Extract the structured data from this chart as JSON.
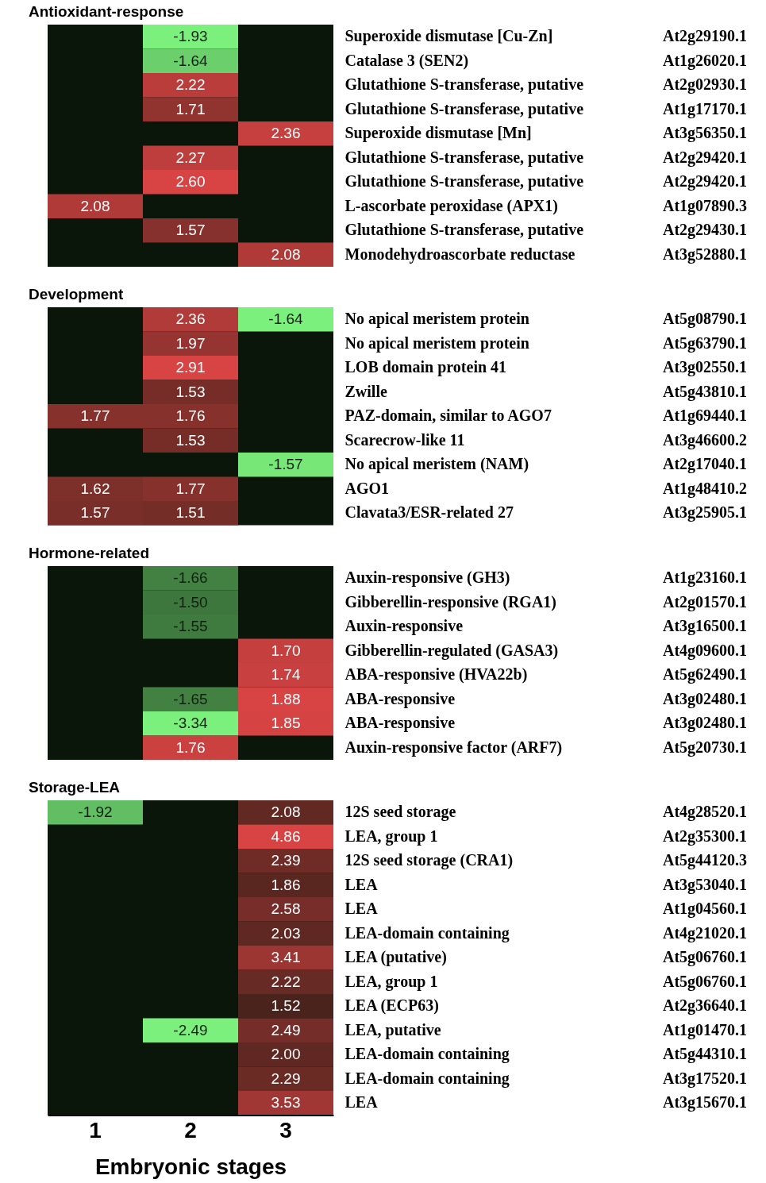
{
  "chart_data": [
    {
      "type": "heatmap",
      "title": "Antioxidant-response",
      "categories": [
        "1",
        "2",
        "3"
      ],
      "tick_labels": "y",
      "y_categories": [
        "Superoxide dismutase [Cu-Zn]",
        "Catalase 3 (SEN2)",
        "Glutathione S-transferase, putative",
        "Glutathione S-transferase, putative",
        "Superoxide dismutase [Mn]",
        "Glutathione S-transferase, putative",
        "Glutathione S-transferase, putative",
        "L-ascorbate peroxidase (APX1)",
        "Glutathione S-transferase, putative",
        "Monodehydroascorbate reductase"
      ],
      "y2_categories": [
        "At2g29190.1",
        "At1g26020.1",
        "At2g02930.1",
        "At1g17170.1",
        "At3g56350.1",
        "At2g29420.1",
        "At2g29420.1",
        "At1g07890.3",
        "At2g29430.1",
        "At3g52880.1"
      ],
      "cells": [
        [
          null,
          -1.93,
          null
        ],
        [
          null,
          -1.64,
          null
        ],
        [
          null,
          2.22,
          null
        ],
        [
          null,
          1.71,
          null
        ],
        [
          null,
          null,
          2.36
        ],
        [
          null,
          2.27,
          null
        ],
        [
          null,
          2.6,
          null
        ],
        [
          2.08,
          null,
          null
        ],
        [
          null,
          1.57,
          null
        ],
        [
          null,
          null,
          2.08
        ]
      ],
      "cell_labels": [
        [
          null,
          "-1.93",
          null
        ],
        [
          null,
          "-1.64",
          null
        ],
        [
          null,
          "2.22",
          null
        ],
        [
          null,
          "1.71",
          null
        ],
        [
          null,
          null,
          "2.36"
        ],
        [
          null,
          "2.27",
          null
        ],
        [
          null,
          "2.60",
          null
        ],
        [
          "2.08",
          null,
          null
        ],
        [
          null,
          "1.57",
          null
        ],
        [
          null,
          null,
          "2.08"
        ]
      ]
    },
    {
      "type": "heatmap",
      "title": "Development",
      "categories": [
        "1",
        "2",
        "3"
      ],
      "tick_labels": "y",
      "y_categories": [
        "No apical meristem protein",
        "No apical meristem protein",
        "LOB domain protein 41",
        "Zwille",
        "PAZ-domain, similar to AGO7",
        "Scarecrow-like 11",
        "No apical meristem (NAM)",
        "AGO1",
        "Clavata3/ESR-related 27"
      ],
      "y2_categories": [
        "At5g08790.1",
        "At5g63790.1",
        "At3g02550.1",
        "At5g43810.1",
        "At1g69440.1",
        "At3g46600.2",
        "At2g17040.1",
        "At1g48410.2",
        "At3g25905.1"
      ],
      "cells": [
        [
          null,
          2.36,
          -1.64
        ],
        [
          null,
          1.97,
          null
        ],
        [
          null,
          2.91,
          null
        ],
        [
          null,
          1.53,
          null
        ],
        [
          1.77,
          1.76,
          null
        ],
        [
          null,
          1.53,
          null
        ],
        [
          null,
          null,
          -1.57
        ],
        [
          1.62,
          1.77,
          null
        ],
        [
          1.57,
          1.51,
          null
        ]
      ],
      "cell_labels": [
        [
          null,
          "2.36",
          "-1.64"
        ],
        [
          null,
          "1.97",
          null
        ],
        [
          null,
          "2.91",
          null
        ],
        [
          null,
          "1.53",
          null
        ],
        [
          "1.77",
          "1.76",
          null
        ],
        [
          null,
          "1.53",
          null
        ],
        [
          null,
          null,
          "-1.57"
        ],
        [
          "1.62",
          "1.77",
          null
        ],
        [
          "1.57",
          "1.51",
          null
        ]
      ]
    },
    {
      "type": "heatmap",
      "title": "Hormone-related",
      "categories": [
        "1",
        "2",
        "3"
      ],
      "tick_labels": "y",
      "y_categories": [
        "Auxin-responsive (GH3)",
        "Gibberellin-responsive (RGA1)",
        "Auxin-responsive",
        "Gibberellin-regulated (GASA3)",
        "ABA-responsive (HVA22b)",
        "ABA-responsive",
        "ABA-responsive",
        "Auxin-responsive factor (ARF7)"
      ],
      "y2_categories": [
        "At1g23160.1",
        "At2g01570.1",
        "At3g16500.1",
        "At4g09600.1",
        "At5g62490.1",
        "At3g02480.1",
        "At3g02480.1",
        "At5g20730.1"
      ],
      "cells": [
        [
          null,
          -1.66,
          null
        ],
        [
          null,
          -1.5,
          null
        ],
        [
          null,
          -1.55,
          null
        ],
        [
          null,
          null,
          1.7
        ],
        [
          null,
          null,
          1.74
        ],
        [
          null,
          -1.65,
          1.88
        ],
        [
          null,
          -3.34,
          1.85
        ],
        [
          null,
          1.76,
          null
        ]
      ],
      "cell_labels": [
        [
          null,
          "-1.66",
          null
        ],
        [
          null,
          "-1.50",
          null
        ],
        [
          null,
          "-1.55",
          null
        ],
        [
          null,
          null,
          "1.70"
        ],
        [
          null,
          null,
          "1.74"
        ],
        [
          null,
          "-1.65",
          "1.88"
        ],
        [
          null,
          "-3.34",
          "1.85"
        ],
        [
          null,
          "1.76",
          null
        ]
      ]
    },
    {
      "type": "heatmap",
      "title": "Storage-LEA",
      "categories": [
        "1",
        "2",
        "3"
      ],
      "xlabel": "Embryonic stages",
      "y_categories": [
        "12S seed storage",
        "LEA, group 1",
        "12S seed storage (CRA1)",
        "LEA",
        "LEA",
        "LEA-domain containing",
        "LEA (putative)",
        "LEA, group 1",
        "LEA (ECP63)",
        "LEA, putative",
        "LEA-domain containing",
        "LEA-domain containing",
        "LEA"
      ],
      "y2_categories": [
        "At4g28520.1",
        "At2g35300.1",
        "At5g44120.3",
        "At3g53040.1",
        "At1g04560.1",
        "At4g21020.1",
        "At5g06760.1",
        "At5g06760.1",
        "At2g36640.1",
        "At1g01470.1",
        "At5g44310.1",
        "At3g17520.1",
        "At3g15670.1"
      ],
      "cells": [
        [
          -1.92,
          null,
          2.08
        ],
        [
          null,
          null,
          4.86
        ],
        [
          null,
          null,
          2.39
        ],
        [
          null,
          null,
          1.86
        ],
        [
          null,
          null,
          2.58
        ],
        [
          null,
          null,
          2.03
        ],
        [
          null,
          null,
          3.41
        ],
        [
          null,
          null,
          2.22
        ],
        [
          null,
          null,
          1.52
        ],
        [
          null,
          -2.49,
          2.49
        ],
        [
          null,
          null,
          2.0
        ],
        [
          null,
          null,
          2.29
        ],
        [
          null,
          null,
          3.53
        ]
      ],
      "cell_labels": [
        [
          "-1.92",
          null,
          "2.08"
        ],
        [
          null,
          null,
          "4.86"
        ],
        [
          null,
          null,
          "2.39"
        ],
        [
          null,
          null,
          "1.86"
        ],
        [
          null,
          null,
          "2.58"
        ],
        [
          null,
          null,
          "2.03"
        ],
        [
          null,
          null,
          "3.41"
        ],
        [
          null,
          null,
          "2.22"
        ],
        [
          null,
          null,
          "1.52"
        ],
        [
          null,
          "-2.49",
          "2.49"
        ],
        [
          null,
          null,
          "2.00"
        ],
        [
          null,
          null,
          "2.29"
        ],
        [
          null,
          null,
          "3.53"
        ]
      ]
    }
  ]
}
